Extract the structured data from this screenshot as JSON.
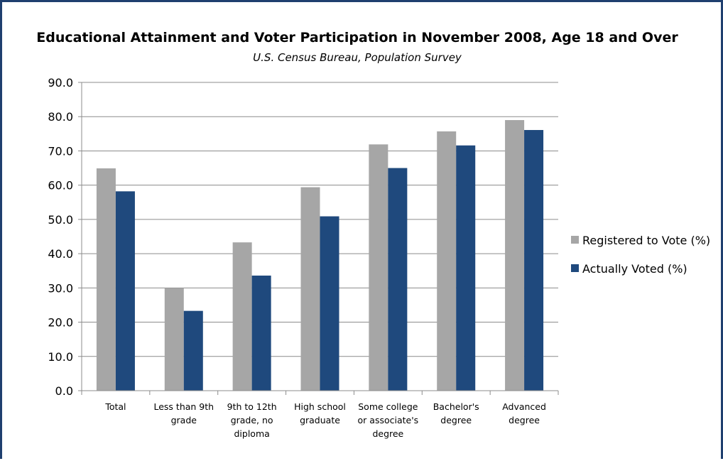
{
  "chart_data": {
    "type": "bar",
    "title": "Educational Attainment and Voter Participation in November 2008, Age 18 and Over",
    "subtitle": "U.S. Census Bureau, Population Survey",
    "xlabel": "",
    "ylabel": "",
    "ylim": [
      0,
      90
    ],
    "yticks": [
      "0.0",
      "10.0",
      "20.0",
      "30.0",
      "40.0",
      "50.0",
      "60.0",
      "70.0",
      "80.0",
      "90.0"
    ],
    "grid": true,
    "legend_position": "right",
    "categories": [
      [
        "Total"
      ],
      [
        "Less than 9th",
        "grade"
      ],
      [
        "9th to 12th",
        "grade, no",
        "diploma"
      ],
      [
        "High school",
        "graduate"
      ],
      [
        "Some college",
        "or associate's",
        "degree"
      ],
      [
        "Bachelor's",
        "degree"
      ],
      [
        "Advanced",
        "degree"
      ]
    ],
    "series": [
      {
        "name": "Registered to Vote (%)",
        "color": "#a6a6a6",
        "values": [
          64.9,
          29.9,
          43.3,
          59.4,
          71.9,
          75.7,
          79.0
        ]
      },
      {
        "name": "Actually Voted (%)",
        "color": "#1f497d",
        "values": [
          58.2,
          23.3,
          33.6,
          50.9,
          65.0,
          71.6,
          76.1
        ]
      }
    ]
  }
}
